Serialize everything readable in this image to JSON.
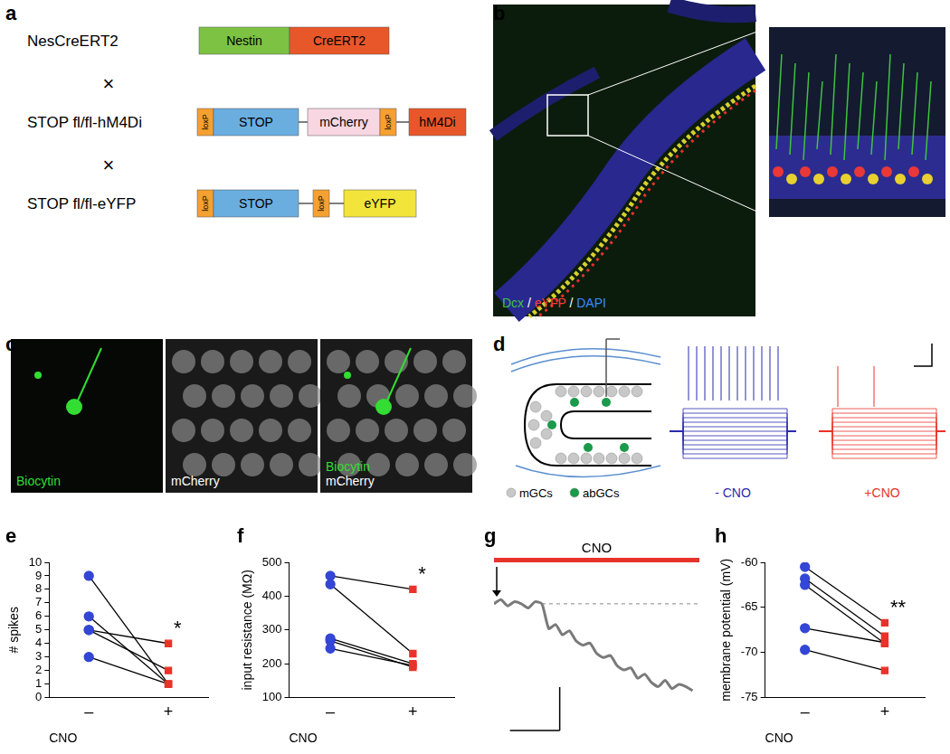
{
  "panel_labels": [
    "a",
    "b",
    "c",
    "d",
    "e",
    "f",
    "g",
    "h"
  ],
  "a": {
    "cross": "×",
    "rows": [
      {
        "label": "NesCreERT2",
        "elements": [
          {
            "text": "Nestin",
            "color": "#7dc242"
          },
          {
            "text": "CreERT2",
            "color": "#e8572a"
          }
        ]
      },
      {
        "label": "STOP fl/fl-hM4Di",
        "elements": [
          {
            "text": "loxP",
            "color": "#f5a030"
          },
          {
            "text": "STOP",
            "color": "#6aaee0"
          },
          {
            "text": "mCherry",
            "color": "#f8d6e2"
          },
          {
            "text": "loxP",
            "color": "#f5a030"
          },
          {
            "text": "hM4Di",
            "color": "#e8572a"
          }
        ]
      },
      {
        "label": "STOP fl/fl-eYFP",
        "elements": [
          {
            "text": "loxP",
            "color": "#f5a030"
          },
          {
            "text": "STOP",
            "color": "#6aaee0"
          },
          {
            "text": "loxP",
            "color": "#f5a030"
          },
          {
            "text": "eYFP",
            "color": "#f2e43a"
          }
        ]
      }
    ]
  },
  "b": {
    "separator": " / ",
    "stain_labels": [
      {
        "text": "Dcx",
        "color": "#3ec43e"
      },
      {
        "text": "eYFP",
        "color": "#ff3b3b"
      },
      {
        "text": "DAPI",
        "color": "#3b8bff"
      }
    ]
  },
  "c": {
    "images": [
      {
        "labels": [
          {
            "text": "Biocytin",
            "color": "#33dd33"
          }
        ]
      },
      {
        "labels": [
          {
            "text": "mCherry",
            "color": "#ffffff"
          }
        ]
      },
      {
        "labels": [
          {
            "text": "Biocytin",
            "color": "#33dd33"
          },
          {
            "text": "mCherry",
            "color": "#ffffff"
          }
        ]
      }
    ]
  },
  "d": {
    "cell_labels": [
      {
        "text": "mGCs",
        "color": "#c8c8c8"
      },
      {
        "text": "abGCs",
        "color": "#1a9a4a"
      }
    ],
    "traces": [
      {
        "label": "- CNO",
        "color": "#2b2bb0"
      },
      {
        "label": "+CNO",
        "color": "#e8332a"
      }
    ]
  },
  "chart_data": [
    {
      "type": "line",
      "y_label": "# spikes",
      "x_label": "CNO",
      "categories": [
        "–",
        "+"
      ],
      "series": [
        {
          "color": "#000000",
          "values": [
            9,
            1
          ]
        },
        {
          "color": "#000000",
          "values": [
            6,
            1
          ]
        },
        {
          "color": "#000000",
          "values": [
            5,
            4
          ]
        },
        {
          "color": "#000000",
          "values": [
            5,
            2
          ]
        },
        {
          "color": "#000000",
          "values": [
            3,
            1
          ]
        }
      ],
      "colors": [
        "#3346d6",
        "#e8332a"
      ],
      "marker": [
        "circle",
        "square"
      ],
      "ylim": [
        0,
        10
      ],
      "yticks": [
        0,
        1,
        2,
        3,
        4,
        5,
        6,
        7,
        8,
        9,
        10
      ],
      "grid": false,
      "annotations": [
        "*"
      ]
    },
    {
      "type": "line",
      "y_label": "input resistance (MΩ)",
      "x_label": "CNO",
      "categories": [
        "–",
        "+"
      ],
      "series": [
        {
          "color": "#000000",
          "values": [
            460,
            420
          ]
        },
        {
          "color": "#000000",
          "values": [
            435,
            230
          ]
        },
        {
          "color": "#000000",
          "values": [
            275,
            200
          ]
        },
        {
          "color": "#000000",
          "values": [
            268,
            190
          ]
        },
        {
          "color": "#000000",
          "values": [
            245,
            195
          ]
        }
      ],
      "colors": [
        "#3346d6",
        "#e8332a"
      ],
      "marker": [
        "circle",
        "square"
      ],
      "ylim": [
        100,
        500
      ],
      "yticks": [
        100,
        200,
        300,
        400,
        500
      ],
      "grid": false,
      "annotations": [
        "*"
      ]
    },
    {
      "type": "line",
      "x": [
        0,
        1,
        2,
        3,
        4,
        5,
        6,
        7,
        8,
        9,
        10,
        11,
        12,
        13,
        14,
        15,
        16,
        17,
        18,
        19,
        20,
        21,
        22,
        23,
        24,
        25,
        26,
        27,
        28,
        29
      ],
      "values": [
        0,
        0.2,
        -0.1,
        0.1,
        0,
        -0.2,
        0.1,
        0,
        -1.2,
        -1.0,
        -1.5,
        -1.3,
        -1.8,
        -2.0,
        -1.9,
        -2.4,
        -2.6,
        -2.5,
        -3.0,
        -3.2,
        -3.1,
        -3.6,
        -3.4,
        -3.8,
        -4.0,
        -3.7,
        -4.1,
        -3.9,
        -4.0,
        -4.2
      ],
      "color": "#7a7a7a",
      "xlim": [
        0,
        30
      ],
      "ylim": [
        -7,
        1
      ],
      "tick_labels": false,
      "grid": false,
      "application": {
        "label": "CNO",
        "x": [
          0,
          30
        ],
        "color": "#e8332a"
      },
      "arrow_x": 0,
      "baseline": {
        "y": 0,
        "x": [
          7,
          30
        ]
      }
    },
    {
      "type": "line",
      "y_label": "membrane potential (mV)",
      "x_label": "CNO",
      "categories": [
        "–",
        "+"
      ],
      "series": [
        {
          "color": "#000000",
          "values": [
            -60.5,
            -66.7
          ]
        },
        {
          "color": "#000000",
          "values": [
            -61.8,
            -68.2
          ]
        },
        {
          "color": "#000000",
          "values": [
            -62.5,
            -69.0
          ]
        },
        {
          "color": "#000000",
          "values": [
            -67.3,
            -68.9
          ]
        },
        {
          "color": "#000000",
          "values": [
            -69.7,
            -72.0
          ]
        }
      ],
      "colors": [
        "#3346d6",
        "#e8332a"
      ],
      "marker": [
        "circle",
        "square"
      ],
      "ylim": [
        -75,
        -60
      ],
      "yticks": [
        -75,
        -70,
        -65,
        -60
      ],
      "grid": false,
      "annotations": [
        "**"
      ]
    }
  ]
}
